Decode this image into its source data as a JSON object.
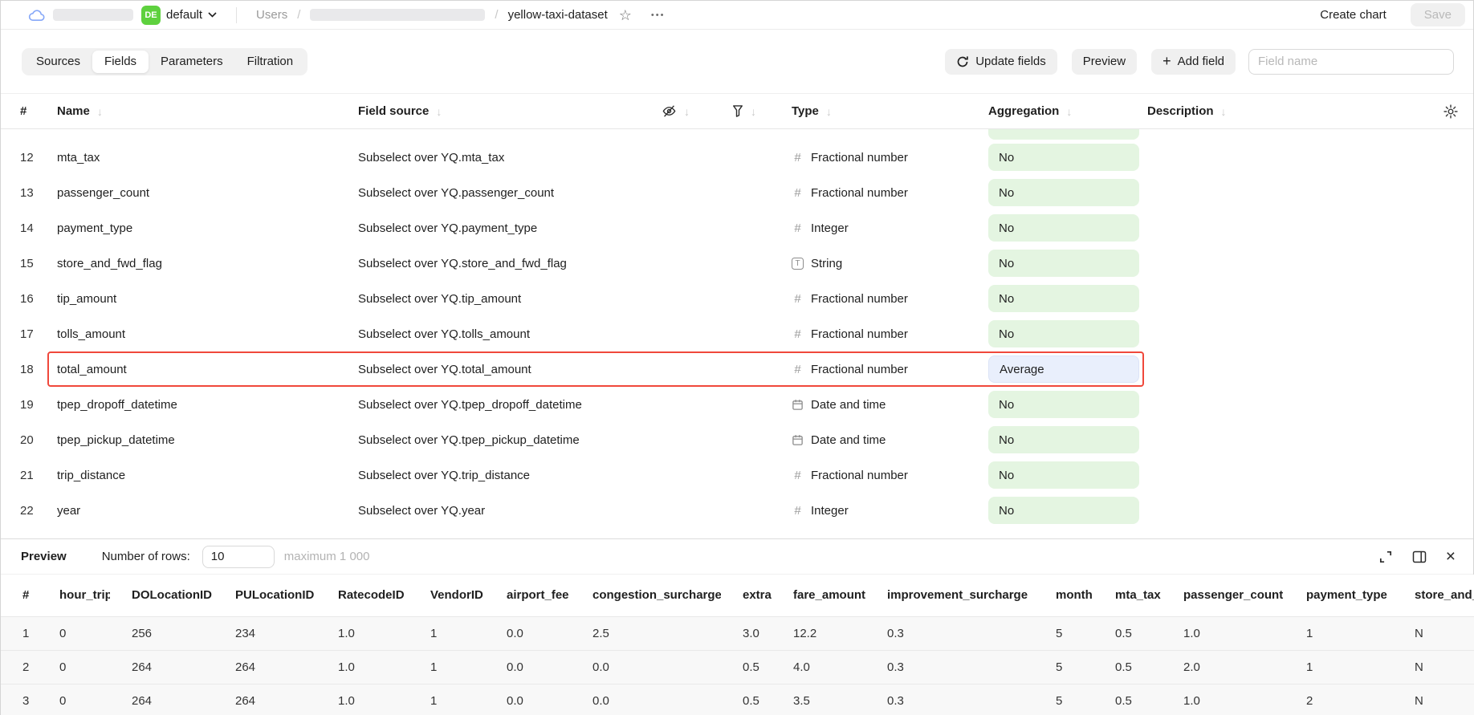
{
  "colors": {
    "badge_green": "#5ed13e",
    "pill_green_bg": "#e4f5e1",
    "pill_blue_bg": "#e9effc",
    "highlight_red": "#f0483b"
  },
  "icons": {
    "sort": "↓",
    "plus": "+",
    "star": "☆",
    "ellipsis": "•••",
    "close": "×"
  },
  "topbar": {
    "project_badge": "DE",
    "folder_label": "default",
    "breadcrumb": {
      "root": "Users",
      "sep": "/",
      "current": "yellow-taxi-dataset"
    },
    "create_chart_label": "Create chart",
    "save_label": "Save"
  },
  "toolbar": {
    "tabs": [
      {
        "label": "Sources",
        "active": false
      },
      {
        "label": "Fields",
        "active": true
      },
      {
        "label": "Parameters",
        "active": false
      },
      {
        "label": "Filtration",
        "active": false
      }
    ],
    "update_fields_label": "Update fields",
    "preview_label": "Preview",
    "add_field_label": "Add field",
    "field_name_placeholder": "Field name"
  },
  "fields_table": {
    "headers": {
      "num": "#",
      "name": "Name",
      "source": "Field source",
      "type": "Type",
      "aggregation": "Aggregation",
      "description": "Description"
    },
    "rows": [
      {
        "num": "12",
        "name": "mta_tax",
        "source": "Subselect over YQ.mta_tax",
        "type_icon": "number",
        "type": "Fractional number",
        "aggregation": "No"
      },
      {
        "num": "13",
        "name": "passenger_count",
        "source": "Subselect over YQ.passenger_count",
        "type_icon": "number",
        "type": "Fractional number",
        "aggregation": "No"
      },
      {
        "num": "14",
        "name": "payment_type",
        "source": "Subselect over YQ.payment_type",
        "type_icon": "number",
        "type": "Integer",
        "aggregation": "No"
      },
      {
        "num": "15",
        "name": "store_and_fwd_flag",
        "source": "Subselect over YQ.store_and_fwd_flag",
        "type_icon": "string",
        "type": "String",
        "aggregation": "No"
      },
      {
        "num": "16",
        "name": "tip_amount",
        "source": "Subselect over YQ.tip_amount",
        "type_icon": "number",
        "type": "Fractional number",
        "aggregation": "No"
      },
      {
        "num": "17",
        "name": "tolls_amount",
        "source": "Subselect over YQ.tolls_amount",
        "type_icon": "number",
        "type": "Fractional number",
        "aggregation": "No"
      },
      {
        "num": "18",
        "name": "total_amount",
        "source": "Subselect over YQ.total_amount",
        "type_icon": "number",
        "type": "Fractional number",
        "aggregation": "Average",
        "highlighted": true
      },
      {
        "num": "19",
        "name": "tpep_dropoff_datetime",
        "source": "Subselect over YQ.tpep_dropoff_datetime",
        "type_icon": "datetime",
        "type": "Date and time",
        "aggregation": "No"
      },
      {
        "num": "20",
        "name": "tpep_pickup_datetime",
        "source": "Subselect over YQ.tpep_pickup_datetime",
        "type_icon": "datetime",
        "type": "Date and time",
        "aggregation": "No"
      },
      {
        "num": "21",
        "name": "trip_distance",
        "source": "Subselect over YQ.trip_distance",
        "type_icon": "number",
        "type": "Fractional number",
        "aggregation": "No"
      },
      {
        "num": "22",
        "name": "year",
        "source": "Subselect over YQ.year",
        "type_icon": "number",
        "type": "Integer",
        "aggregation": "No"
      }
    ]
  },
  "preview": {
    "title": "Preview",
    "rows_label": "Number of rows:",
    "rows_value": "10",
    "max_label": "maximum 1 000",
    "table": {
      "columns": [
        "#",
        "hour_trip",
        "DOLocationID",
        "PULocationID",
        "RatecodeID",
        "VendorID",
        "airport_fee",
        "congestion_surcharge",
        "extra",
        "fare_amount",
        "improvement_surcharge",
        "month",
        "mta_tax",
        "passenger_count",
        "payment_type",
        "store_and_fwd_flag"
      ],
      "rows": [
        [
          "1",
          "0",
          "256",
          "234",
          "1.0",
          "1",
          "0.0",
          "2.5",
          "3.0",
          "12.2",
          "0.3",
          "5",
          "0.5",
          "1.0",
          "1",
          "N"
        ],
        [
          "2",
          "0",
          "264",
          "264",
          "1.0",
          "1",
          "0.0",
          "0.0",
          "0.5",
          "4.0",
          "0.3",
          "5",
          "0.5",
          "2.0",
          "1",
          "N"
        ],
        [
          "3",
          "0",
          "264",
          "264",
          "1.0",
          "1",
          "0.0",
          "0.0",
          "0.5",
          "3.5",
          "0.3",
          "5",
          "0.5",
          "1.0",
          "2",
          "N"
        ]
      ]
    }
  }
}
